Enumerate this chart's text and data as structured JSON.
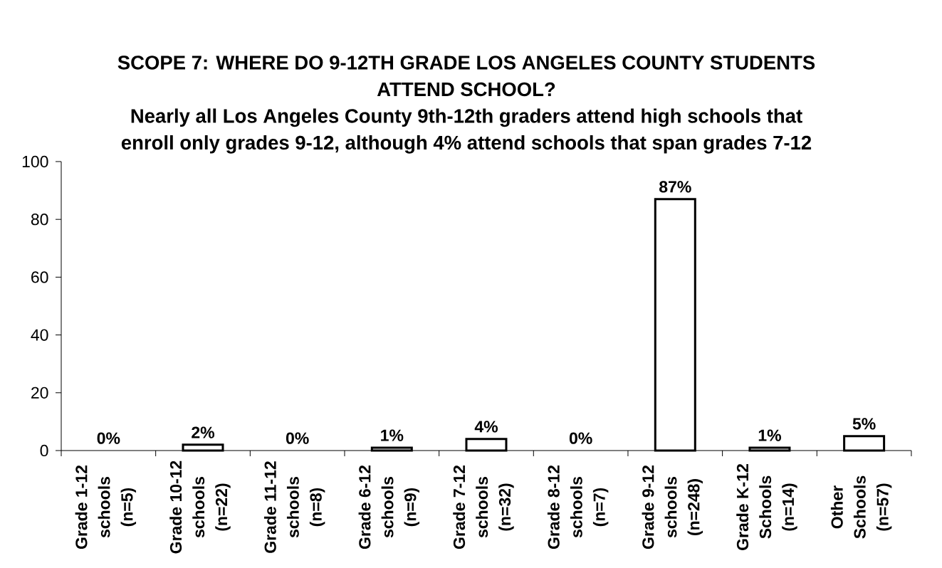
{
  "chart_data": {
    "type": "bar",
    "title": "SCOPE 7: WHERE DO 9-12TH GRADE LOS ANGELES COUNTY STUDENTS ATTEND SCHOOL?",
    "subtitle": "Nearly all Los Angeles County 9th-12th graders attend high schools that enroll only grades 9-12, although 4% attend schools that span grades 7-12",
    "categories": [
      "Grade 1-12 schools (n=5)",
      "Grade 10-12 schools (n=22)",
      "Grade 11-12 schools (n=8)",
      "Grade 6-12 schools (n=9)",
      "Grade 7-12 schools (n=32)",
      "Grade 8-12 schools (n=7)",
      "Grade 9-12 schools (n=248)",
      "Grade K-12 Schools (n=14)",
      "Other Schools (n=57)"
    ],
    "values": [
      0,
      2,
      0,
      1,
      4,
      0,
      87,
      1,
      5
    ],
    "value_labels": [
      "0%",
      "2%",
      "0%",
      "1%",
      "4%",
      "0%",
      "87%",
      "1%",
      "5%"
    ],
    "color": "#ffffff",
    "ylim": [
      0,
      100
    ],
    "yticks": [
      0,
      20,
      40,
      60,
      80,
      100
    ]
  }
}
